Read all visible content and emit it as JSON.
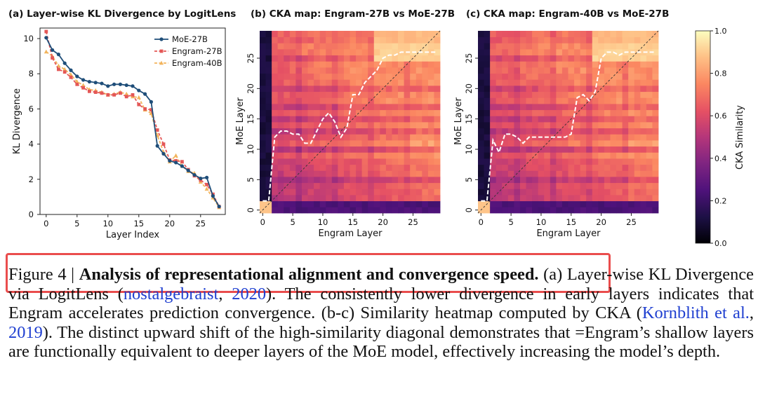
{
  "panels": {
    "a": {
      "title": "(a) Layer-wise KL Divergence by LogitLens"
    },
    "b": {
      "title": "(b) CKA map: Engram-27B vs MoE-27B"
    },
    "c": {
      "title": "(c) CKA map: Engram-40B vs MoE-27B"
    }
  },
  "colorbar": {
    "label": "CKA Similarity",
    "ticks": [
      "0.0",
      "0.2",
      "0.4",
      "0.6",
      "0.8",
      "1.0"
    ]
  },
  "caption": {
    "figure_label": "Figure 4 | ",
    "bold_title": "Analysis of representational alignment and convergence speed.",
    "text_1": " (a) Layer-wise KL Divergence via LogitLens (",
    "cite_1_author": "nostalgebraist",
    "cite_1_sep": ", ",
    "cite_1_year": "2020",
    "text_2": "). The consistently lower divergence in early layers indicates that Engram accelerates prediction convergence. (b-c) Similarity heatmap computed by CKA (",
    "cite_2_author": "Kornblith et al.",
    "cite_2_sep": ", ",
    "cite_2_year": "2019",
    "text_3": "). The distinct upward shift of the high-similarity diagonal demonstrates that =Engram’s shallow layers are functionally equivalent to deeper layers of the MoE model, effectively increasing the model’s depth."
  },
  "colors": {
    "moe": "#1f4e79",
    "engram27": "#e45756",
    "engram40": "#f2b45c",
    "highlight": "#ea4d4d",
    "cite": "#1f3fd0"
  },
  "chart_data": [
    {
      "type": "line",
      "title": "(a) Layer-wise KL Divergence by LogitLens",
      "xlabel": "Layer Index",
      "ylabel": "KL Divergence",
      "xlim": [
        -1,
        29
      ],
      "ylim": [
        0,
        10.6
      ],
      "xticks": [
        0,
        5,
        10,
        15,
        20,
        25
      ],
      "yticks": [
        0,
        2,
        4,
        6,
        8,
        10
      ],
      "legend_position": "top-right",
      "x": [
        0,
        1,
        2,
        3,
        4,
        5,
        6,
        7,
        8,
        9,
        10,
        11,
        12,
        13,
        14,
        15,
        16,
        17,
        18,
        19,
        20,
        21,
        22,
        23,
        24,
        25,
        26,
        27,
        28
      ],
      "series": [
        {
          "name": "MoE-27B",
          "marker": "circle",
          "values": [
            10.05,
            9.35,
            9.1,
            8.6,
            8.2,
            7.85,
            7.65,
            7.55,
            7.5,
            7.45,
            7.3,
            7.4,
            7.4,
            7.35,
            7.3,
            7.05,
            6.85,
            6.4,
            3.9,
            3.45,
            3.05,
            2.95,
            2.75,
            2.5,
            2.25,
            2.05,
            2.1,
            1.05,
            0.45
          ]
        },
        {
          "name": "Engram-27B",
          "marker": "square",
          "values": [
            10.4,
            8.9,
            8.25,
            8.1,
            7.8,
            7.4,
            7.2,
            7.0,
            6.95,
            6.9,
            6.8,
            6.8,
            6.9,
            6.7,
            6.8,
            6.25,
            6.0,
            5.95,
            4.8,
            4.0,
            3.1,
            3.05,
            3.0,
            2.55,
            2.2,
            1.95,
            1.7,
            1.15,
            0.45
          ]
        },
        {
          "name": "Engram-40B",
          "marker": "triangle",
          "values": [
            9.25,
            9.0,
            8.45,
            8.25,
            7.95,
            7.55,
            7.35,
            7.1,
            7.05,
            6.95,
            6.8,
            6.85,
            6.95,
            6.85,
            6.7,
            6.65,
            5.95,
            5.75,
            4.5,
            3.55,
            3.0,
            3.35,
            2.75,
            2.45,
            2.35,
            1.85,
            1.45,
            0.95,
            0.4
          ]
        }
      ]
    },
    {
      "type": "heatmap",
      "title": "(b) CKA map: Engram-27B vs MoE-27B",
      "xlabel": "Engram Layer",
      "ylabel": "MoE Layer",
      "xticks": [
        0,
        5,
        10,
        15,
        20,
        25
      ],
      "yticks": [
        0,
        5,
        10,
        15,
        20,
        25
      ],
      "grid_size": 30,
      "argmax_path_label": "high-similarity diagonal (dashed white)",
      "argmax_path": [
        1.5,
        1.5,
        12,
        13,
        13,
        12.5,
        12.5,
        11,
        11,
        13,
        15,
        16,
        14.5,
        12,
        13.5,
        19,
        19,
        21,
        22,
        23,
        25,
        25.5,
        25.5,
        26,
        26,
        26,
        26,
        26,
        26,
        26
      ]
    },
    {
      "type": "heatmap",
      "title": "(c) CKA map: Engram-40B vs MoE-27B",
      "xlabel": "Engram Layer",
      "ylabel": "MoE Layer",
      "xticks": [
        0,
        5,
        10,
        15,
        20,
        25
      ],
      "yticks": [
        0,
        5,
        10,
        15,
        20,
        25
      ],
      "grid_size": 30,
      "argmax_path_label": "high-similarity diagonal (dashed white)",
      "argmax_path": [
        1.5,
        1.5,
        11.5,
        9.5,
        12.5,
        12.5,
        12,
        11,
        12,
        12,
        12,
        12,
        12,
        12,
        12,
        12.5,
        18.5,
        19,
        18,
        19.5,
        25,
        26,
        26,
        25.5,
        26,
        26,
        26,
        26,
        26,
        26
      ]
    }
  ]
}
